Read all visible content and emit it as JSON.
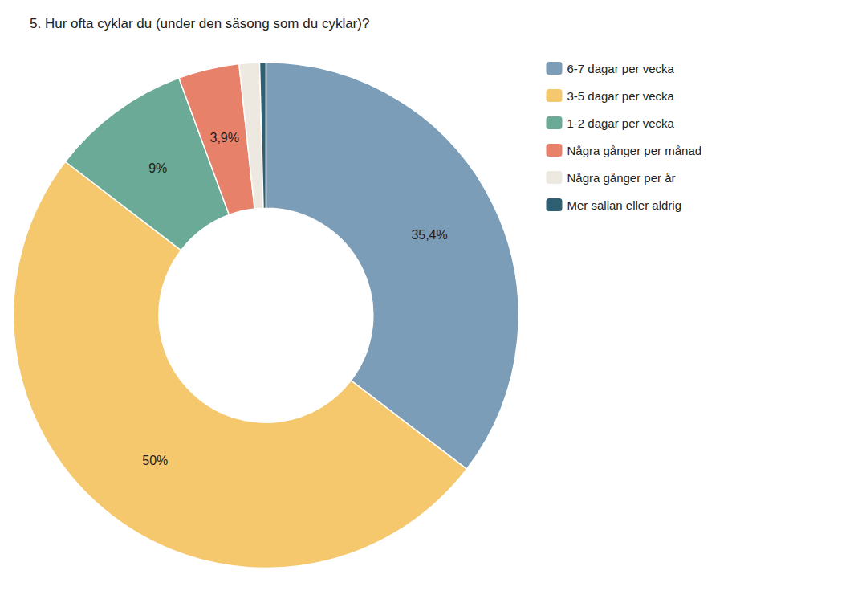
{
  "chart_data": {
    "type": "donut",
    "title": "5. Hur ofta cyklar du (under den säsong som du cyklar)?",
    "categories": [
      "6-7 dagar per vecka",
      "3-5 dagar per vecka",
      "1-2 dagar per vecka",
      "Några gånger per månad",
      "Några gånger per år",
      "Mer sällan eller aldrig"
    ],
    "values": [
      35.4,
      50.0,
      9.0,
      3.9,
      1.3,
      0.4
    ],
    "value_labels": [
      "35,4%",
      "50%",
      "9%",
      "3,9%",
      null,
      null
    ],
    "colors": [
      "#7b9db8",
      "#f5c86e",
      "#6aaa96",
      "#e8816a",
      "#ede8e0",
      "#2e5f72"
    ],
    "data_labels": true,
    "legend": "upper right"
  }
}
